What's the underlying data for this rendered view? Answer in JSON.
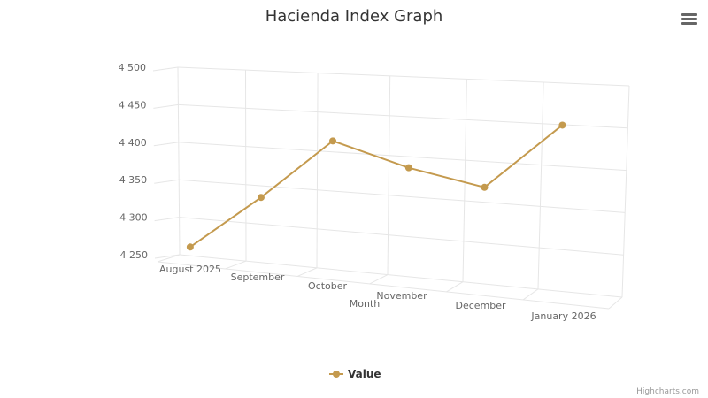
{
  "chart_data": {
    "type": "line",
    "title": "Hacienda Index Graph",
    "xlabel": "Month",
    "ylabel": "",
    "categories": [
      "August 2025",
      "September",
      "October",
      "November",
      "December",
      "January 2026"
    ],
    "series": [
      {
        "name": "Value",
        "values": [
          4269,
          4342,
          4421,
          4393,
          4375,
          4456
        ]
      }
    ],
    "ylim": [
      4250,
      4500
    ],
    "yticks": [
      4250,
      4300,
      4350,
      4400,
      4450,
      4500
    ],
    "ytick_labels": [
      "4 250",
      "4 300",
      "4 350",
      "4 400",
      "4 450",
      "4 500"
    ],
    "grid": true,
    "legend": "bottom-center",
    "three_d": true,
    "colors": {
      "series": "#c49a4e",
      "grid": "#e6e6e6",
      "text": "#666666"
    }
  },
  "ui": {
    "menu_icon": "hamburger-menu-icon",
    "credits": "Highcharts.com"
  }
}
